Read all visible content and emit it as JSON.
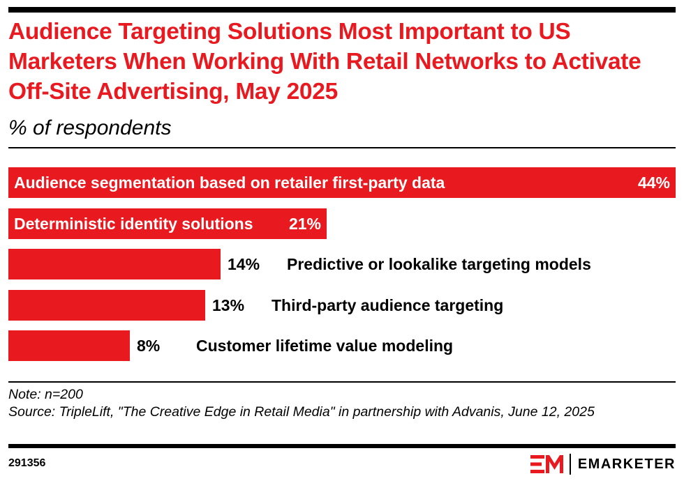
{
  "title": "Audience Targeting Solutions Most Important to US Marketers When Working With Retail Networks to Activate Off-Site Advertising, May 2025",
  "subtitle": "% of respondents",
  "chart_data": {
    "type": "bar",
    "orientation": "horizontal",
    "title": "Audience Targeting Solutions Most Important to US Marketers When Working With Retail Networks to Activate Off-Site Advertising, May 2025",
    "subtitle": "% of respondents",
    "categories": [
      "Audience segmentation based on retailer first-party data",
      "Deterministic identity solutions",
      "Predictive or lookalike targeting models",
      "Third-party audience targeting",
      "Customer lifetime value modeling"
    ],
    "values": [
      44,
      21,
      14,
      13,
      8
    ],
    "value_labels": [
      "44%",
      "21%",
      "14%",
      "13%",
      "8%"
    ],
    "xlim": [
      0,
      44
    ],
    "grid": false,
    "legend": "none",
    "bar_color": "#e8191f"
  },
  "footer": {
    "note": "Note: n=200",
    "source": "Source: TripleLift, \"The Creative Edge in Retail Media\" in partnership with Advanis, June 12, 2025",
    "chart_id": "291356",
    "brand": "EMARKETER"
  },
  "colors": {
    "accent": "#e8191f",
    "text": "#000000",
    "background": "#ffffff"
  },
  "icons": {
    "brand_logo": "em-logo-icon"
  }
}
